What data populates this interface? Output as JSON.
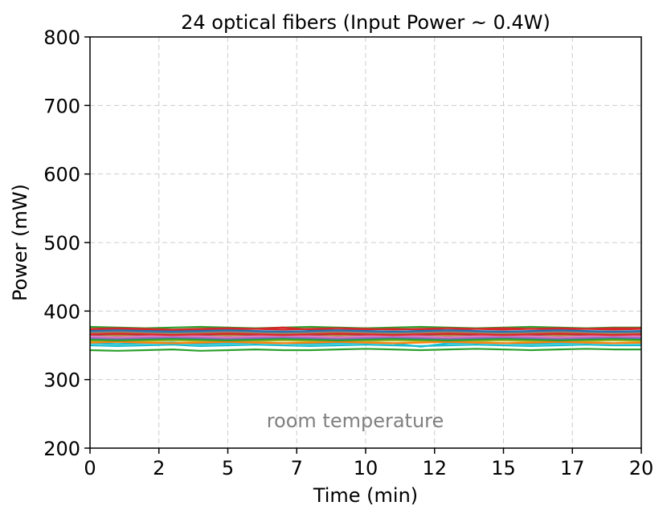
{
  "chart_data": {
    "type": "line",
    "title": "24 optical fibers (Input Power ~ 0.4W)",
    "xlabel": "Time (min)",
    "ylabel": "Power (mW)",
    "xlim": [
      0,
      20
    ],
    "ylim": [
      200,
      800
    ],
    "xticks": [
      0,
      2.5,
      5,
      7.5,
      10,
      12.5,
      15,
      17.5,
      20
    ],
    "xtick_labels": [
      "0",
      "2",
      "5",
      "7",
      "10",
      "12",
      "15",
      "17",
      "20"
    ],
    "yticks": [
      200,
      300,
      400,
      500,
      600,
      700,
      800
    ],
    "ytick_labels": [
      "200",
      "300",
      "400",
      "500",
      "600",
      "700",
      "800"
    ],
    "grid": true,
    "legend": "none",
    "annotation": "room temperature",
    "x": [
      0,
      1,
      2,
      3,
      4,
      5,
      6,
      7,
      8,
      9,
      10,
      11,
      12,
      13,
      14,
      15,
      16,
      17,
      18,
      19,
      20
    ],
    "series": [
      {
        "color": "#1f77b4",
        "values": [
          366,
          364,
          365,
          366,
          365,
          364,
          365,
          366,
          365,
          364,
          365,
          364,
          365,
          366,
          365,
          364,
          365,
          366,
          365,
          364,
          365
        ]
      },
      {
        "color": "#ff7f0e",
        "values": [
          360,
          361,
          359,
          360,
          361,
          360,
          359,
          360,
          361,
          360,
          359,
          361,
          360,
          359,
          360,
          361,
          360,
          359,
          360,
          361,
          360
        ]
      },
      {
        "color": "#2ca02c",
        "values": [
          377,
          376,
          375,
          376,
          377,
          376,
          375,
          376,
          377,
          376,
          375,
          376,
          377,
          376,
          375,
          376,
          377,
          376,
          375,
          376,
          376
        ]
      },
      {
        "color": "#d62728",
        "values": [
          372,
          373,
          372,
          371,
          372,
          373,
          374,
          376,
          373,
          372,
          373,
          374,
          373,
          372,
          374,
          375,
          374,
          373,
          374,
          375,
          375
        ]
      },
      {
        "color": "#9467bd",
        "values": [
          368,
          367,
          368,
          369,
          368,
          367,
          368,
          369,
          368,
          367,
          368,
          369,
          368,
          367,
          368,
          369,
          368,
          367,
          368,
          369,
          368
        ]
      },
      {
        "color": "#8c564b",
        "values": [
          362,
          363,
          362,
          361,
          362,
          363,
          362,
          361,
          362,
          363,
          362,
          361,
          362,
          363,
          362,
          361,
          362,
          363,
          362,
          361,
          362
        ]
      },
      {
        "color": "#e377c2",
        "values": [
          370,
          371,
          370,
          369,
          370,
          371,
          370,
          369,
          370,
          371,
          370,
          369,
          370,
          371,
          370,
          369,
          370,
          371,
          370,
          369,
          370
        ]
      },
      {
        "color": "#7f7f7f",
        "values": [
          357,
          356,
          357,
          358,
          357,
          356,
          357,
          358,
          357,
          356,
          357,
          358,
          357,
          356,
          357,
          358,
          357,
          356,
          357,
          358,
          357
        ]
      },
      {
        "color": "#bcbd22",
        "values": [
          364,
          365,
          364,
          363,
          364,
          365,
          364,
          363,
          364,
          365,
          364,
          363,
          364,
          365,
          364,
          363,
          364,
          365,
          364,
          363,
          364
        ]
      },
      {
        "color": "#17becf",
        "values": [
          350,
          349,
          350,
          351,
          349,
          350,
          351,
          350,
          349,
          350,
          351,
          350,
          349,
          350,
          351,
          350,
          349,
          350,
          351,
          350,
          350
        ]
      },
      {
        "color": "#1f77b4",
        "values": [
          359,
          358,
          359,
          360,
          359,
          358,
          359,
          360,
          359,
          358,
          359,
          360,
          359,
          358,
          359,
          360,
          359,
          358,
          359,
          360,
          359
        ]
      },
      {
        "color": "#ff7f0e",
        "values": [
          367,
          368,
          367,
          366,
          367,
          368,
          367,
          366,
          367,
          368,
          367,
          366,
          367,
          368,
          367,
          366,
          367,
          368,
          367,
          366,
          367
        ]
      },
      {
        "color": "#2ca02c",
        "values": [
          343,
          342,
          343,
          344,
          342,
          343,
          344,
          343,
          343,
          344,
          345,
          344,
          343,
          344,
          345,
          344,
          343,
          344,
          345,
          344,
          344
        ]
      },
      {
        "color": "#d62728",
        "values": [
          374,
          375,
          374,
          373,
          374,
          375,
          374,
          373,
          374,
          375,
          374,
          373,
          374,
          375,
          374,
          373,
          374,
          375,
          374,
          373,
          374
        ]
      },
      {
        "color": "#9467bd",
        "values": [
          361,
          360,
          361,
          362,
          361,
          360,
          361,
          362,
          361,
          360,
          361,
          362,
          361,
          360,
          361,
          362,
          361,
          360,
          361,
          362,
          361
        ]
      },
      {
        "color": "#8c564b",
        "values": [
          365,
          366,
          365,
          364,
          365,
          366,
          365,
          364,
          365,
          366,
          365,
          364,
          365,
          366,
          365,
          364,
          365,
          366,
          365,
          364,
          365
        ]
      },
      {
        "color": "#e377c2",
        "values": [
          363,
          362,
          363,
          364,
          363,
          362,
          363,
          364,
          363,
          362,
          363,
          364,
          363,
          362,
          363,
          364,
          363,
          362,
          363,
          364,
          363
        ]
      },
      {
        "color": "#7f7f7f",
        "values": [
          369,
          370,
          369,
          368,
          369,
          370,
          369,
          368,
          369,
          370,
          369,
          368,
          369,
          370,
          369,
          368,
          369,
          370,
          369,
          368,
          369
        ]
      },
      {
        "color": "#bcbd22",
        "values": [
          356,
          355,
          356,
          357,
          356,
          355,
          356,
          357,
          356,
          355,
          356,
          357,
          356,
          355,
          356,
          357,
          356,
          355,
          356,
          357,
          356
        ]
      },
      {
        "color": "#17becf",
        "values": [
          353,
          352,
          353,
          354,
          352,
          353,
          354,
          353,
          352,
          353,
          354,
          353,
          348,
          353,
          354,
          353,
          352,
          353,
          354,
          353,
          353
        ]
      },
      {
        "color": "#1f77b4",
        "values": [
          371,
          372,
          371,
          370,
          371,
          372,
          371,
          370,
          371,
          372,
          371,
          370,
          371,
          372,
          371,
          370,
          371,
          372,
          371,
          370,
          371
        ]
      },
      {
        "color": "#ff7f0e",
        "values": [
          354,
          355,
          354,
          353,
          354,
          355,
          354,
          353,
          354,
          355,
          354,
          353,
          354,
          355,
          354,
          353,
          354,
          355,
          354,
          353,
          354
        ]
      },
      {
        "color": "#2ca02c",
        "values": [
          358,
          357,
          358,
          359,
          358,
          357,
          358,
          359,
          358,
          357,
          358,
          359,
          358,
          357,
          358,
          359,
          358,
          357,
          358,
          359,
          358
        ]
      },
      {
        "color": "#d62728",
        "values": [
          366,
          367,
          366,
          365,
          366,
          367,
          366,
          365,
          366,
          367,
          366,
          365,
          366,
          367,
          366,
          365,
          366,
          367,
          366,
          365,
          366
        ]
      }
    ]
  }
}
